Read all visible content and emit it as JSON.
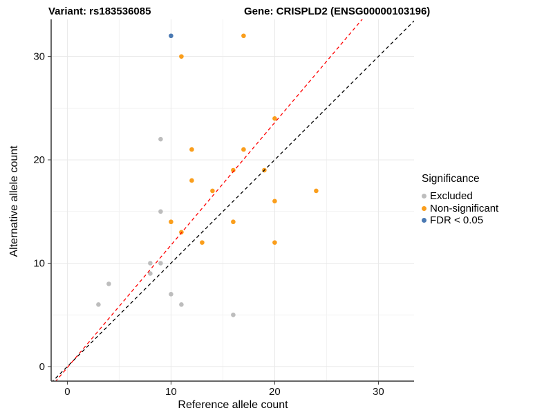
{
  "figure": {
    "title_left": "Variant: rs183536085",
    "title_right": "Gene: CRISPLD2 (ENSG00000103196)"
  },
  "chart_data": {
    "type": "scatter",
    "title": "Variant: rs183536085 — Gene: CRISPLD2 (ENSG00000103196)",
    "xlabel": "Reference allele count",
    "ylabel": "Alternative allele count",
    "xlim": [
      -1.56,
      33.44
    ],
    "ylim": [
      -1.41,
      33.59
    ],
    "x_ticks": [
      0,
      10,
      20,
      30
    ],
    "y_ticks": [
      0,
      10,
      20,
      30
    ],
    "x_minor_ticks": [
      5,
      15,
      25
    ],
    "y_minor_ticks": [
      5,
      15,
      25
    ],
    "grid": true,
    "colors": {
      "major_grid": "#E8E8E8",
      "minor_grid": "#F2F2F2",
      "axis_line": "#333333",
      "tick_label": "#111111"
    },
    "legend": {
      "title": "Significance",
      "position": "right",
      "items": [
        {
          "label": "Excluded",
          "color": "#BDBDBD"
        },
        {
          "label": "Non-significant",
          "color": "#FA9E1C"
        },
        {
          "label": "FDR < 0.05",
          "color": "#4A79B2"
        }
      ]
    },
    "series": [
      {
        "name": "Excluded",
        "color": "#BDBDBD",
        "points": [
          [
            3,
            6
          ],
          [
            4,
            8
          ],
          [
            8,
            9
          ],
          [
            8,
            10
          ],
          [
            9,
            10
          ],
          [
            9,
            15
          ],
          [
            9,
            22
          ],
          [
            10,
            7
          ],
          [
            11,
            6
          ],
          [
            16,
            5
          ]
        ]
      },
      {
        "name": "Non-significant",
        "color": "#FA9E1C",
        "points": [
          [
            10,
            14
          ],
          [
            11,
            13
          ],
          [
            11,
            30
          ],
          [
            12,
            18
          ],
          [
            12,
            21
          ],
          [
            13,
            12
          ],
          [
            14,
            17
          ],
          [
            16,
            14
          ],
          [
            16,
            19
          ],
          [
            17,
            21
          ],
          [
            17,
            32
          ],
          [
            19,
            19
          ],
          [
            20,
            12
          ],
          [
            20,
            16
          ],
          [
            20,
            24
          ],
          [
            24,
            17
          ]
        ]
      },
      {
        "name": "FDR < 0.05",
        "color": "#4A79B2",
        "points": [
          [
            10,
            32
          ]
        ]
      }
    ],
    "lines": [
      {
        "name": "identity-line",
        "slope": 1,
        "intercept": 0,
        "color": "#000000",
        "dash": "5,4"
      },
      {
        "name": "fitted-ratio-line",
        "slope": 1.185,
        "intercept": -0.1,
        "color": "#FF0000",
        "dash": "5,4"
      }
    ]
  }
}
